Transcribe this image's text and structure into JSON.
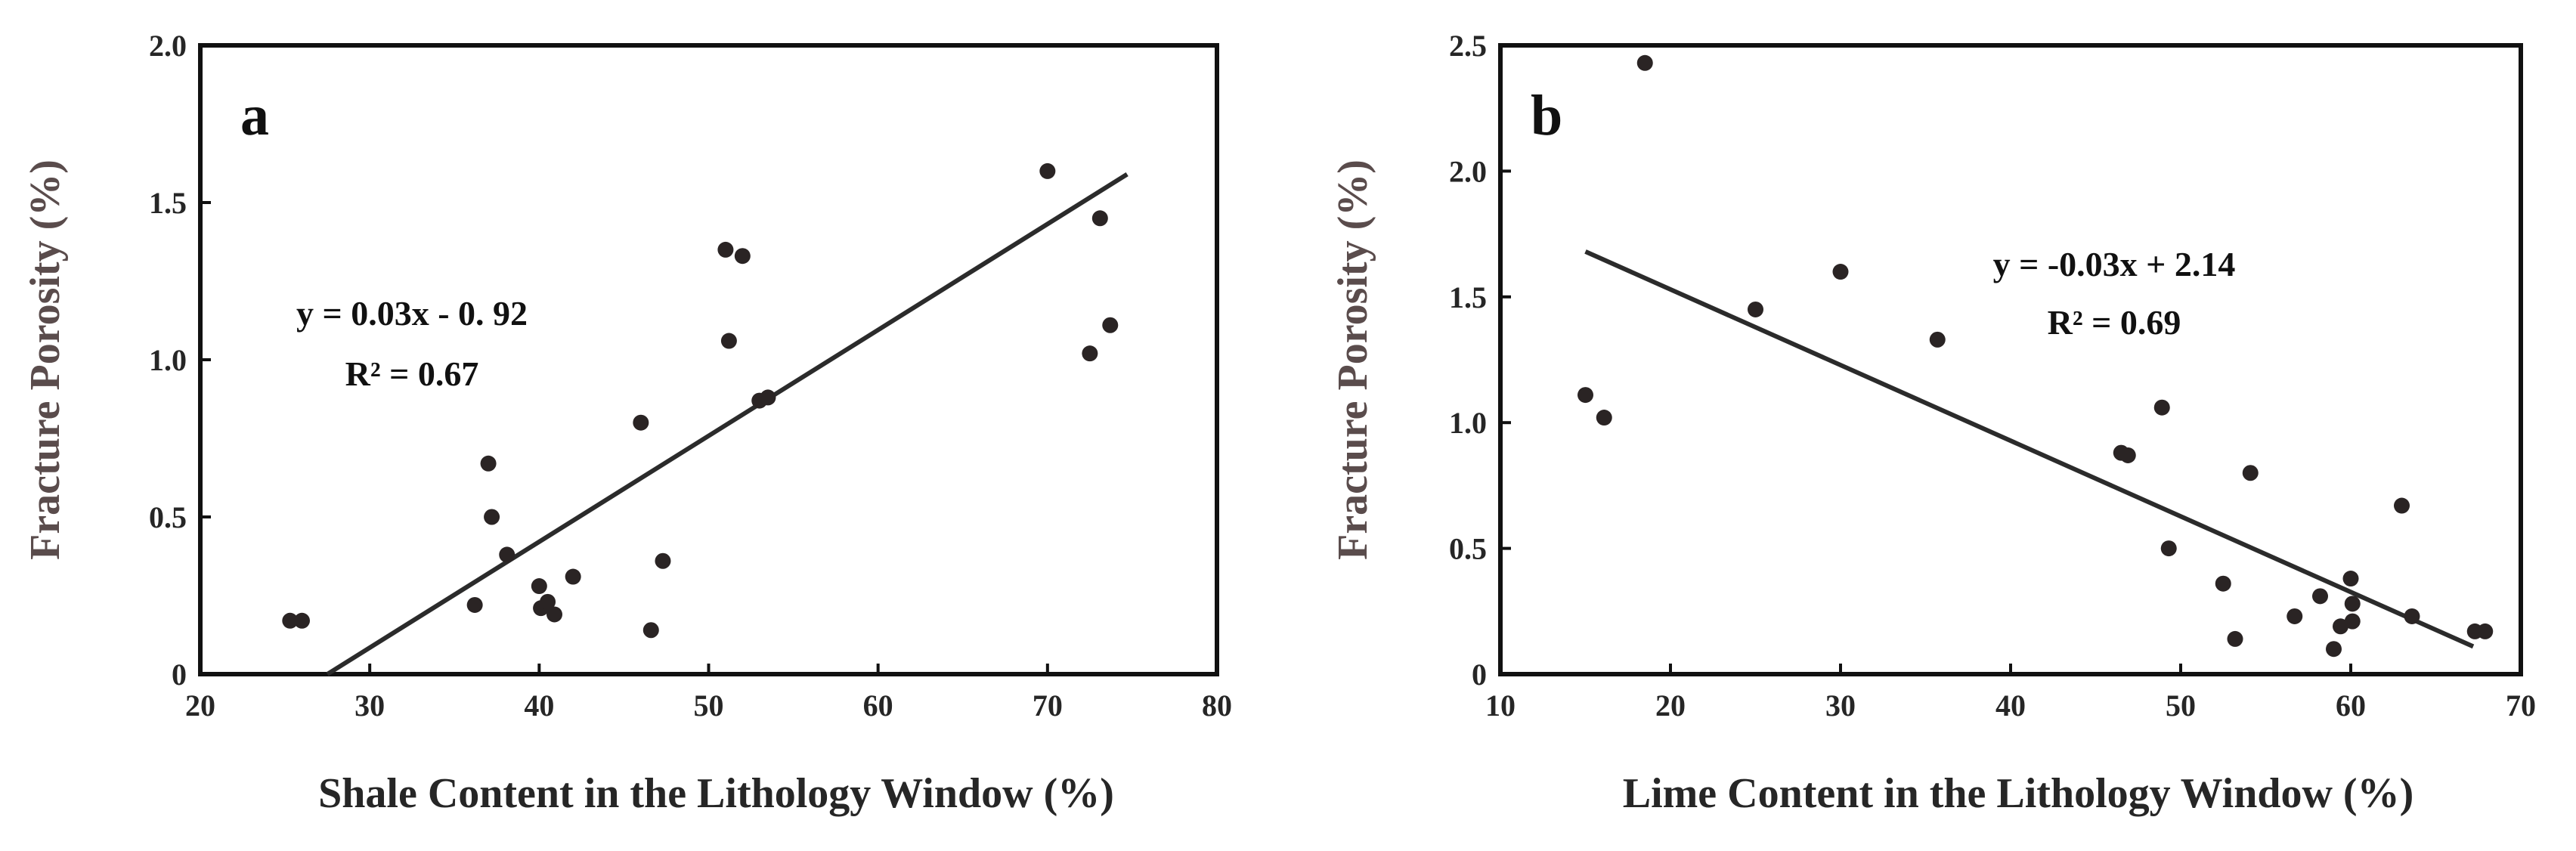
{
  "chart_data": [
    {
      "type": "scatter",
      "panel_label": "a",
      "xlabel": "Shale Content in the Lithology Window (%)",
      "ylabel": "Fracture Porosity (%)",
      "xlim": [
        20,
        80
      ],
      "ylim": [
        0,
        2.0
      ],
      "xticks": [
        20,
        30,
        40,
        50,
        60,
        70,
        80
      ],
      "xtick_labels": [
        "20",
        "30",
        "40",
        "50",
        "60",
        "70",
        "80"
      ],
      "yticks": [
        0,
        0.5,
        1.0,
        1.5,
        2.0
      ],
      "ytick_labels": [
        "0",
        "0.5",
        "1.0",
        "1.5",
        "2.0"
      ],
      "grid": false,
      "annotations": [
        "y = 0.03x - 0. 92",
        "R² = 0.67"
      ],
      "trendline": {
        "x": [
          27.5,
          74.7
        ],
        "y": [
          0.0,
          1.59
        ]
      },
      "points": [
        {
          "x": 25.3,
          "y": 0.17
        },
        {
          "x": 26.0,
          "y": 0.17
        },
        {
          "x": 36.2,
          "y": 0.22
        },
        {
          "x": 37.0,
          "y": 0.67
        },
        {
          "x": 37.2,
          "y": 0.5
        },
        {
          "x": 38.1,
          "y": 0.38
        },
        {
          "x": 40.0,
          "y": 0.28
        },
        {
          "x": 40.1,
          "y": 0.21
        },
        {
          "x": 40.5,
          "y": 0.23
        },
        {
          "x": 40.9,
          "y": 0.19
        },
        {
          "x": 42.0,
          "y": 0.31
        },
        {
          "x": 46.0,
          "y": 0.8
        },
        {
          "x": 46.6,
          "y": 0.14
        },
        {
          "x": 47.3,
          "y": 0.36
        },
        {
          "x": 51.0,
          "y": 1.35
        },
        {
          "x": 51.2,
          "y": 1.06
        },
        {
          "x": 52.0,
          "y": 1.33
        },
        {
          "x": 53.0,
          "y": 0.87
        },
        {
          "x": 53.5,
          "y": 0.88
        },
        {
          "x": 70.0,
          "y": 1.6
        },
        {
          "x": 72.5,
          "y": 1.02
        },
        {
          "x": 73.1,
          "y": 1.45
        },
        {
          "x": 73.7,
          "y": 1.11
        }
      ]
    },
    {
      "type": "scatter",
      "panel_label": "b",
      "xlabel": "Lime Content in the Lithology Window (%)",
      "ylabel": "Fracture Porosity (%)",
      "xlim": [
        10,
        70
      ],
      "ylim": [
        0,
        2.5
      ],
      "xticks": [
        10,
        20,
        30,
        40,
        50,
        60,
        70
      ],
      "xtick_labels": [
        "10",
        "20",
        "30",
        "40",
        "50",
        "60",
        "70"
      ],
      "yticks": [
        0,
        0.5,
        1.0,
        1.5,
        2.0,
        2.5
      ],
      "ytick_labels": [
        "0",
        "0.5",
        "1.0",
        "1.5",
        "2.0",
        "2.5"
      ],
      "grid": false,
      "annotations": [
        "y = -0.03x + 2.14",
        "R² = 0.69"
      ],
      "trendline": {
        "x": [
          15.0,
          67.2
        ],
        "y": [
          1.68,
          0.11
        ]
      },
      "points": [
        {
          "x": 15.0,
          "y": 1.11
        },
        {
          "x": 16.1,
          "y": 1.02
        },
        {
          "x": 18.5,
          "y": 2.43
        },
        {
          "x": 25.0,
          "y": 1.45
        },
        {
          "x": 30.0,
          "y": 1.6
        },
        {
          "x": 35.7,
          "y": 1.33
        },
        {
          "x": 46.5,
          "y": 0.88
        },
        {
          "x": 46.9,
          "y": 0.87
        },
        {
          "x": 48.9,
          "y": 1.06
        },
        {
          "x": 49.3,
          "y": 0.5
        },
        {
          "x": 52.5,
          "y": 0.36
        },
        {
          "x": 53.2,
          "y": 0.14
        },
        {
          "x": 54.1,
          "y": 0.8
        },
        {
          "x": 56.7,
          "y": 0.23
        },
        {
          "x": 58.2,
          "y": 0.31
        },
        {
          "x": 59.0,
          "y": 0.1
        },
        {
          "x": 59.4,
          "y": 0.19
        },
        {
          "x": 60.0,
          "y": 0.38
        },
        {
          "x": 60.1,
          "y": 0.28
        },
        {
          "x": 60.1,
          "y": 0.21
        },
        {
          "x": 63.0,
          "y": 0.67
        },
        {
          "x": 63.6,
          "y": 0.23
        },
        {
          "x": 67.3,
          "y": 0.17
        },
        {
          "x": 67.9,
          "y": 0.17
        }
      ]
    }
  ]
}
